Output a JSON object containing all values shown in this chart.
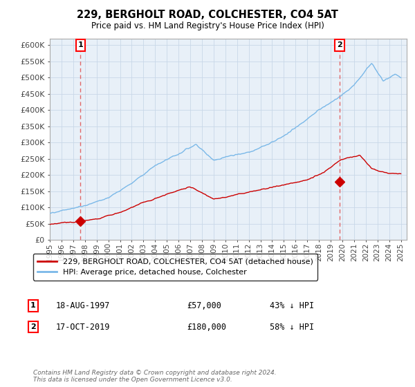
{
  "title1": "229, BERGHOLT ROAD, COLCHESTER, CO4 5AT",
  "title2": "Price paid vs. HM Land Registry's House Price Index (HPI)",
  "ylabel_ticks": [
    "£0",
    "£50K",
    "£100K",
    "£150K",
    "£200K",
    "£250K",
    "£300K",
    "£350K",
    "£400K",
    "£450K",
    "£500K",
    "£550K",
    "£600K"
  ],
  "ytick_values": [
    0,
    50000,
    100000,
    150000,
    200000,
    250000,
    300000,
    350000,
    400000,
    450000,
    500000,
    550000,
    600000
  ],
  "xmin": 1995.0,
  "xmax": 2025.5,
  "ymin": 0,
  "ymax": 620000,
  "transaction1": {
    "year": 1997.63,
    "price": 57000,
    "label": "1"
  },
  "transaction2": {
    "year": 2019.79,
    "price": 180000,
    "label": "2"
  },
  "hpi_color": "#7ab8e8",
  "price_color": "#cc0000",
  "marker_color": "#cc0000",
  "dashed_line_color": "#e05050",
  "chart_bg_color": "#e8f0f8",
  "legend1": "229, BERGHOLT ROAD, COLCHESTER, CO4 5AT (detached house)",
  "legend2": "HPI: Average price, detached house, Colchester",
  "ann1_date": "18-AUG-1997",
  "ann1_price": "£57,000",
  "ann1_hpi": "43% ↓ HPI",
  "ann2_date": "17-OCT-2019",
  "ann2_price": "£180,000",
  "ann2_hpi": "58% ↓ HPI",
  "footer": "Contains HM Land Registry data © Crown copyright and database right 2024.\nThis data is licensed under the Open Government Licence v3.0.",
  "background_color": "#ffffff",
  "grid_color": "#c8d8e8"
}
